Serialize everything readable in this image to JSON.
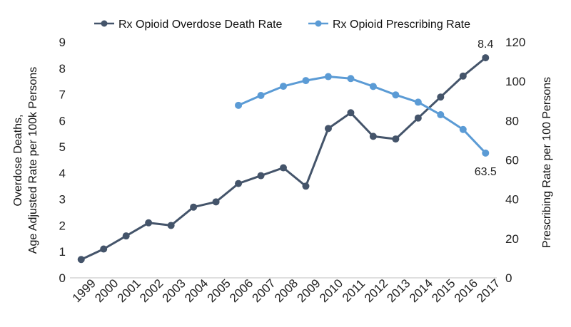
{
  "chart_data": {
    "type": "line",
    "title": "",
    "x": [
      "1999",
      "2000",
      "2001",
      "2002",
      "2003",
      "2004",
      "2005",
      "2006",
      "2007",
      "2008",
      "2009",
      "2010",
      "2011",
      "2012",
      "2013",
      "2014",
      "2015",
      "2016",
      "2017"
    ],
    "series": [
      {
        "name": "Rx Opioid Overdose Death Rate",
        "axis": "left",
        "color": "#44546a",
        "values": [
          0.7,
          1.1,
          1.6,
          2.1,
          2.0,
          2.7,
          2.9,
          3.6,
          3.9,
          4.2,
          3.5,
          5.7,
          6.3,
          5.4,
          5.3,
          6.1,
          6.9,
          7.7,
          8.4
        ],
        "end_label": "8.4"
      },
      {
        "name": "Rx Opioid Prescribing Rate",
        "axis": "right",
        "color": "#5b9bd5",
        "values": [
          null,
          null,
          null,
          null,
          null,
          null,
          null,
          87.8,
          92.8,
          97.5,
          100.4,
          102.4,
          101.4,
          97.4,
          93.1,
          89.4,
          83.0,
          75.5,
          63.5
        ],
        "end_label": "63.5"
      }
    ],
    "ylabel_left": [
      "Overdose Deaths,",
      "Age Adjusted Rate per 100k Persons"
    ],
    "ylabel_right": "Prescribing Rate per 100 Persons",
    "ylim_left": [
      0,
      9
    ],
    "yticks_left": [
      "0",
      "1",
      "2",
      "3",
      "4",
      "5",
      "6",
      "7",
      "8",
      "9"
    ],
    "ylim_right": [
      0,
      120
    ],
    "yticks_right": [
      "0",
      "20",
      "40",
      "60",
      "80",
      "100",
      "120"
    ],
    "grid": false,
    "legend_position": "top-center"
  }
}
